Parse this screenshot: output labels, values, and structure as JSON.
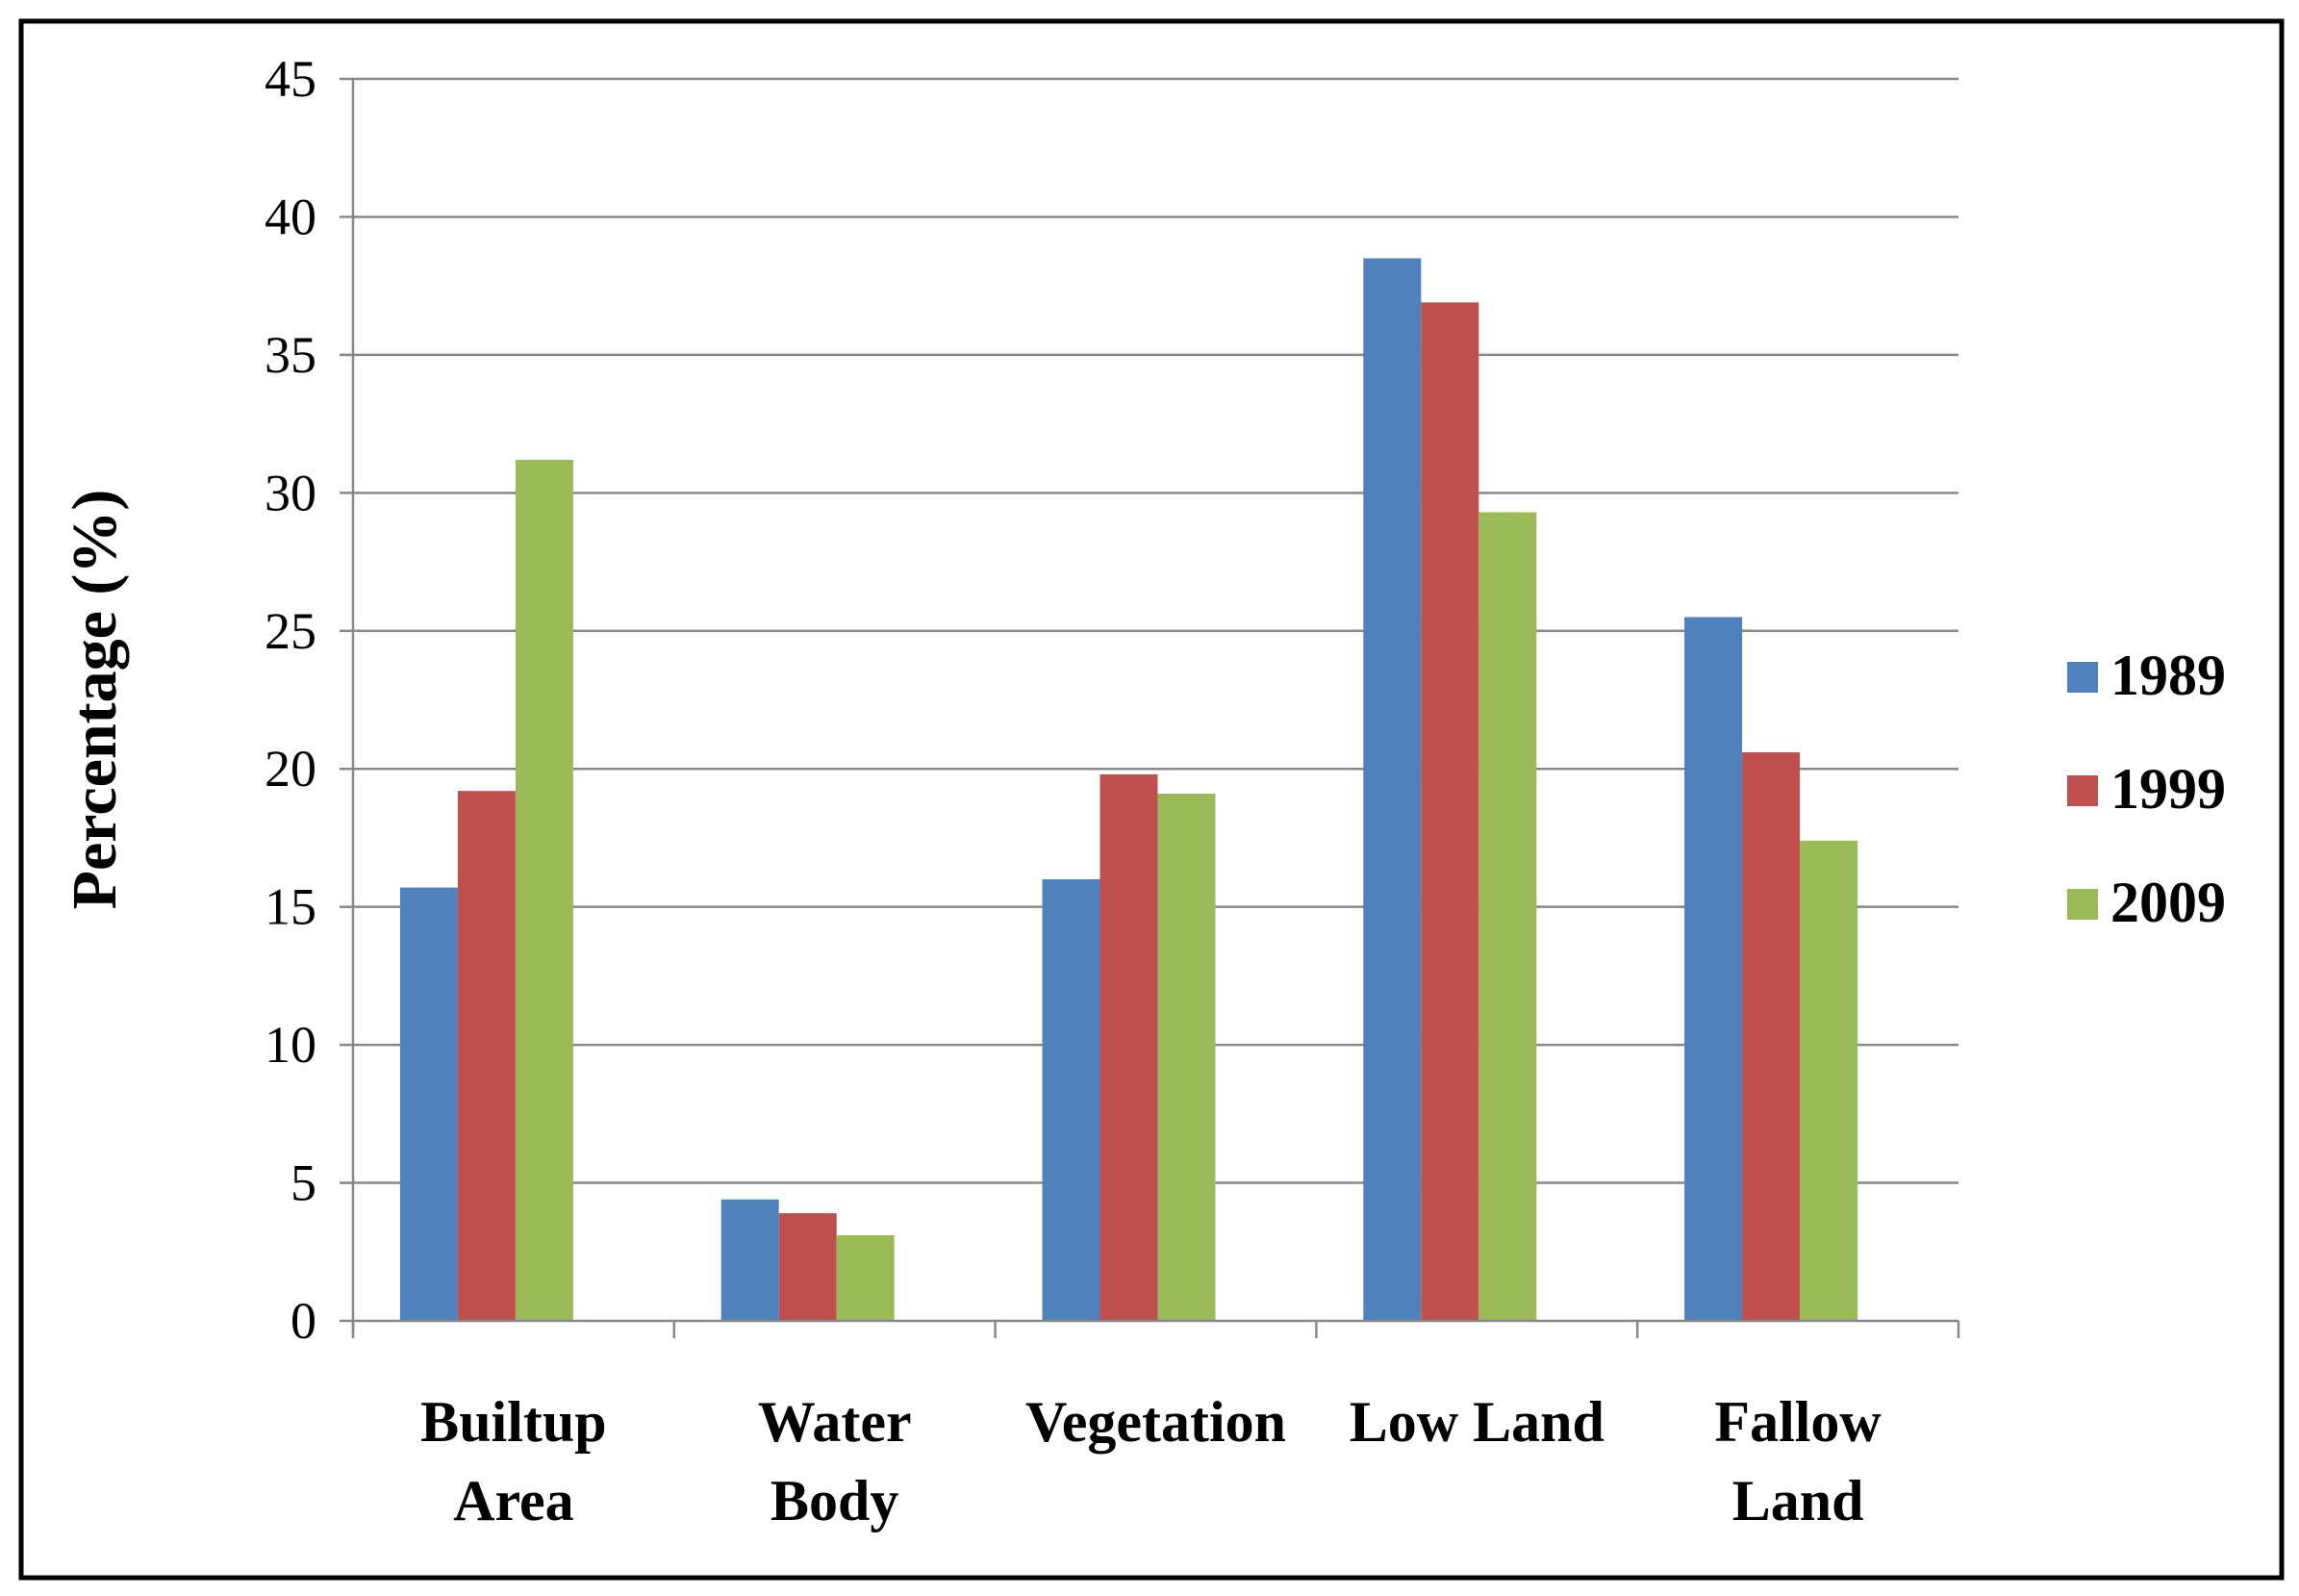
{
  "chart_data": {
    "type": "bar",
    "title": "",
    "xlabel": "",
    "ylabel": "Percentage (%)",
    "ylim": [
      0,
      45
    ],
    "yticks": [
      0,
      5,
      10,
      15,
      20,
      25,
      30,
      35,
      40,
      45
    ],
    "grid": true,
    "legend_position": "right",
    "categories": [
      [
        "Builtup",
        "Area"
      ],
      [
        "Water",
        "Body"
      ],
      [
        "Vegetation"
      ],
      [
        "Low Land"
      ],
      [
        "Fallow",
        "Land"
      ]
    ],
    "series": [
      {
        "name": "1989",
        "color": "#4F81BD",
        "values": [
          15.7,
          4.4,
          16.0,
          38.5,
          25.5
        ]
      },
      {
        "name": "1999",
        "color": "#C0504D",
        "values": [
          19.2,
          3.9,
          19.8,
          36.9,
          20.6
        ]
      },
      {
        "name": "2009",
        "color": "#9BBB59",
        "values": [
          31.2,
          3.1,
          19.1,
          29.3,
          17.4
        ]
      }
    ]
  }
}
